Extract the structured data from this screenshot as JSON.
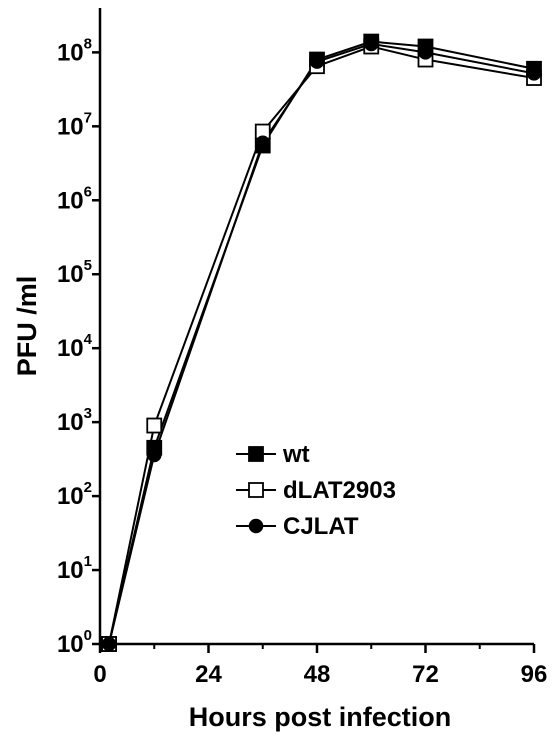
{
  "chart_data": {
    "type": "line",
    "xlabel": "Hours post infection",
    "ylabel": "PFU /ml",
    "xlim": [
      0,
      96
    ],
    "ylim_log10": [
      0,
      8.6
    ],
    "yscale": "log",
    "x_ticks": [
      "0",
      "24",
      "48",
      "72",
      "96"
    ],
    "y_ticks": [
      {
        "base": "10",
        "exp": "0"
      },
      {
        "base": "10",
        "exp": "1"
      },
      {
        "base": "10",
        "exp": "2"
      },
      {
        "base": "10",
        "exp": "3"
      },
      {
        "base": "10",
        "exp": "4"
      },
      {
        "base": "10",
        "exp": "5"
      },
      {
        "base": "10",
        "exp": "6"
      },
      {
        "base": "10",
        "exp": "7"
      },
      {
        "base": "10",
        "exp": "8"
      }
    ],
    "grid": false,
    "legend_position": "middle",
    "series": [
      {
        "name": "wt",
        "marker": "filled-square",
        "x": [
          2,
          12,
          36,
          48,
          60,
          72,
          96
        ],
        "y": [
          1,
          450,
          5500000,
          80000000,
          140000000,
          120000000,
          60000000
        ]
      },
      {
        "name": "dLAT2903",
        "marker": "open-square",
        "x": [
          2,
          12,
          36,
          48,
          60,
          72,
          96
        ],
        "y": [
          1,
          900,
          8500000,
          65000000,
          120000000,
          80000000,
          45000000
        ]
      },
      {
        "name": "CJLAT",
        "marker": "filled-circle",
        "x": [
          2,
          12,
          36,
          48,
          60,
          72,
          96
        ],
        "y": [
          1,
          360,
          6000000,
          75000000,
          130000000,
          100000000,
          52000000
        ]
      }
    ]
  }
}
